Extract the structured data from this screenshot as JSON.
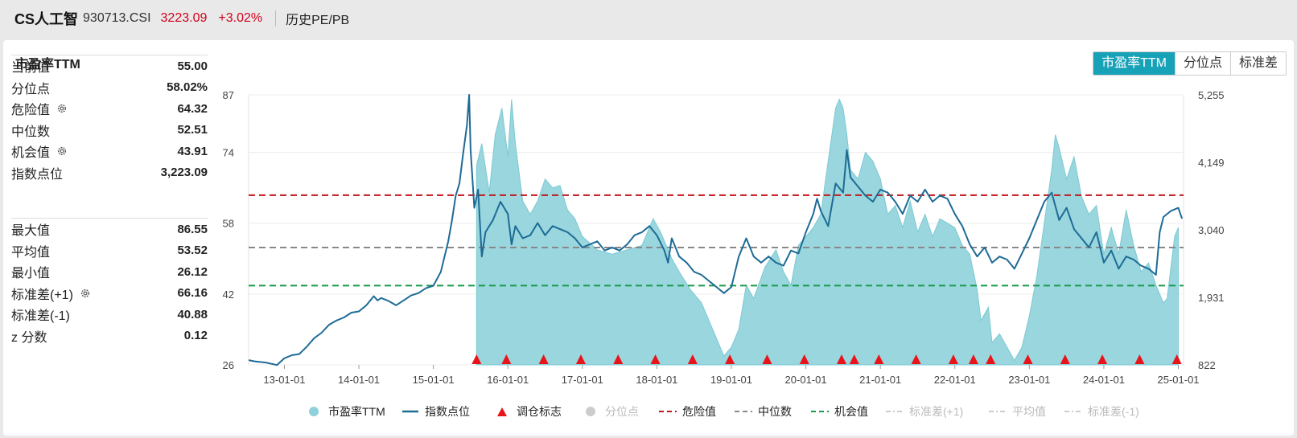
{
  "header": {
    "name": "CS人工智",
    "code": "930713.CSI",
    "price": "3223.09",
    "change_pct": "+3.02%",
    "history_link": "历史PE/PB"
  },
  "panel": {
    "title": "市盈率TTM",
    "tabs": [
      "市盈率TTM",
      "分位点",
      "标准差"
    ],
    "active_tab": 0
  },
  "stats": {
    "group1": [
      {
        "label": "当前值",
        "value": "55.00",
        "gear": false
      },
      {
        "label": "分位点",
        "value": "58.02%",
        "gear": false
      },
      {
        "label": "危险值",
        "value": "64.32",
        "gear": true
      },
      {
        "label": "中位数",
        "value": "52.51",
        "gear": false
      },
      {
        "label": "机会值",
        "value": "43.91",
        "gear": true
      },
      {
        "label": "指数点位",
        "value": "3,223.09",
        "gear": false
      }
    ],
    "group2": [
      {
        "label": "最大值",
        "value": "86.55",
        "gear": false
      },
      {
        "label": "平均值",
        "value": "53.52",
        "gear": false
      },
      {
        "label": "最小值",
        "value": "26.12",
        "gear": false
      },
      {
        "label": "标准差(+1)",
        "value": "66.16",
        "gear": true
      },
      {
        "label": "标准差(-1)",
        "value": "40.88",
        "gear": false
      },
      {
        "label": "z 分数",
        "value": "0.12",
        "gear": false
      }
    ]
  },
  "colors": {
    "pe_fill": "#8ed1da",
    "pe_line": "#7cc9d3",
    "index_line": "#1e6b96",
    "danger": "#c0161b",
    "median": "#888888",
    "opportunity": "#1a9b4b",
    "marker": "#e8141a",
    "active_tab": "#17a2b8",
    "up": "#d0021b"
  },
  "legend": [
    {
      "label": "市盈率TTM",
      "kind": "circle",
      "color": "#8ed1da",
      "dim": false
    },
    {
      "label": "指数点位",
      "kind": "line",
      "color": "#1e6b96",
      "dim": false
    },
    {
      "label": "调仓标志",
      "kind": "triangle",
      "color": "#e8141a",
      "dim": false
    },
    {
      "label": "分位点",
      "kind": "circle",
      "color": "#cccccc",
      "dim": true
    },
    {
      "label": "危险值",
      "kind": "dash",
      "color": "#c0161b",
      "dim": false
    },
    {
      "label": "中位数",
      "kind": "dash",
      "color": "#888888",
      "dim": false
    },
    {
      "label": "机会值",
      "kind": "dash",
      "color": "#1a9b4b",
      "dim": false
    },
    {
      "label": "标准差(+1)",
      "kind": "dashdot",
      "color": "#cccccc",
      "dim": true
    },
    {
      "label": "平均值",
      "kind": "dashdot",
      "color": "#cccccc",
      "dim": true
    },
    {
      "label": "标准差(-1)",
      "kind": "dashdot",
      "color": "#cccccc",
      "dim": true
    }
  ],
  "chart_data": {
    "type": "area",
    "x_start": "2012-07",
    "x_end": "2025-01",
    "x_ticks": [
      "13-01-01",
      "14-01-01",
      "15-01-01",
      "16-01-01",
      "17-01-01",
      "18-01-01",
      "19-01-01",
      "20-01-01",
      "21-01-01",
      "22-01-01",
      "23-01-01",
      "24-01-01",
      "25-01-01"
    ],
    "y_left": {
      "range": [
        26,
        87
      ],
      "ticks": [
        "26",
        "42",
        "58",
        "74",
        "87"
      ],
      "tick_values": [
        26,
        42,
        58,
        74,
        87
      ]
    },
    "y_right": {
      "range": [
        822,
        5255
      ],
      "ticks": [
        "822",
        "1,931",
        "3,040",
        "4,149",
        "5,255"
      ],
      "tick_values": [
        822,
        1931,
        3040,
        4149,
        5255
      ]
    },
    "reference_lines": [
      {
        "name": "危险值",
        "value": 64.32
      },
      {
        "name": "中位数",
        "value": 52.51
      },
      {
        "name": "机会值",
        "value": 43.91
      }
    ],
    "series": [
      {
        "name": "市盈率TTM",
        "axis": "left",
        "points": [
          [
            2015.58,
            71
          ],
          [
            2015.65,
            76
          ],
          [
            2015.75,
            65
          ],
          [
            2015.83,
            78
          ],
          [
            2015.92,
            84
          ],
          [
            2016.0,
            73
          ],
          [
            2016.05,
            86
          ],
          [
            2016.1,
            76
          ],
          [
            2016.2,
            63
          ],
          [
            2016.3,
            60
          ],
          [
            2016.4,
            63
          ],
          [
            2016.5,
            68
          ],
          [
            2016.6,
            66
          ],
          [
            2016.7,
            66.5
          ],
          [
            2016.8,
            61
          ],
          [
            2016.9,
            59
          ],
          [
            2017.0,
            55
          ],
          [
            2017.2,
            52
          ],
          [
            2017.4,
            51
          ],
          [
            2017.6,
            52
          ],
          [
            2017.8,
            53
          ],
          [
            2017.95,
            59
          ],
          [
            2018.05,
            56
          ],
          [
            2018.2,
            50
          ],
          [
            2018.3,
            47
          ],
          [
            2018.45,
            43
          ],
          [
            2018.6,
            40
          ],
          [
            2018.75,
            34
          ],
          [
            2018.9,
            28
          ],
          [
            2019.0,
            30
          ],
          [
            2019.1,
            34
          ],
          [
            2019.2,
            44
          ],
          [
            2019.3,
            41
          ],
          [
            2019.45,
            48
          ],
          [
            2019.6,
            52
          ],
          [
            2019.7,
            47
          ],
          [
            2019.8,
            44
          ],
          [
            2019.9,
            53
          ],
          [
            2020.0,
            55
          ],
          [
            2020.1,
            57
          ],
          [
            2020.2,
            60
          ],
          [
            2020.3,
            72
          ],
          [
            2020.4,
            84
          ],
          [
            2020.45,
            86
          ],
          [
            2020.5,
            84
          ],
          [
            2020.55,
            78
          ],
          [
            2020.6,
            70
          ],
          [
            2020.7,
            68
          ],
          [
            2020.8,
            74
          ],
          [
            2020.9,
            72
          ],
          [
            2021.0,
            68
          ],
          [
            2021.1,
            60
          ],
          [
            2021.2,
            62
          ],
          [
            2021.3,
            57
          ],
          [
            2021.4,
            63
          ],
          [
            2021.5,
            56
          ],
          [
            2021.6,
            60
          ],
          [
            2021.7,
            55
          ],
          [
            2021.8,
            59
          ],
          [
            2021.9,
            58
          ],
          [
            2022.0,
            57
          ],
          [
            2022.1,
            53
          ],
          [
            2022.2,
            51
          ],
          [
            2022.3,
            43
          ],
          [
            2022.35,
            36
          ],
          [
            2022.45,
            39
          ],
          [
            2022.5,
            31
          ],
          [
            2022.6,
            33
          ],
          [
            2022.7,
            30
          ],
          [
            2022.8,
            27
          ],
          [
            2022.9,
            30
          ],
          [
            2023.0,
            37
          ],
          [
            2023.1,
            46
          ],
          [
            2023.2,
            58
          ],
          [
            2023.3,
            70
          ],
          [
            2023.35,
            78
          ],
          [
            2023.4,
            75
          ],
          [
            2023.5,
            68
          ],
          [
            2023.6,
            73
          ],
          [
            2023.7,
            64
          ],
          [
            2023.8,
            60
          ],
          [
            2023.9,
            62
          ],
          [
            2024.0,
            51
          ],
          [
            2024.1,
            57
          ],
          [
            2024.2,
            51
          ],
          [
            2024.3,
            61
          ],
          [
            2024.4,
            53
          ],
          [
            2024.5,
            47
          ],
          [
            2024.6,
            49
          ],
          [
            2024.7,
            44
          ],
          [
            2024.8,
            40
          ],
          [
            2024.85,
            41
          ],
          [
            2024.95,
            55
          ],
          [
            2025.0,
            57
          ]
        ]
      },
      {
        "name": "指数点位",
        "axis": "right",
        "points": [
          [
            2012.52,
            900
          ],
          [
            2012.6,
            880
          ],
          [
            2012.75,
            860
          ],
          [
            2012.9,
            820
          ],
          [
            2013.0,
            930
          ],
          [
            2013.1,
            980
          ],
          [
            2013.2,
            1000
          ],
          [
            2013.3,
            1120
          ],
          [
            2013.4,
            1260
          ],
          [
            2013.5,
            1350
          ],
          [
            2013.6,
            1480
          ],
          [
            2013.7,
            1550
          ],
          [
            2013.8,
            1600
          ],
          [
            2013.9,
            1680
          ],
          [
            2014.0,
            1700
          ],
          [
            2014.1,
            1800
          ],
          [
            2014.2,
            1950
          ],
          [
            2014.25,
            1880
          ],
          [
            2014.3,
            1920
          ],
          [
            2014.4,
            1870
          ],
          [
            2014.5,
            1800
          ],
          [
            2014.6,
            1880
          ],
          [
            2014.7,
            1960
          ],
          [
            2014.8,
            2000
          ],
          [
            2014.9,
            2080
          ],
          [
            2015.0,
            2120
          ],
          [
            2015.1,
            2350
          ],
          [
            2015.2,
            2850
          ],
          [
            2015.25,
            3200
          ],
          [
            2015.3,
            3600
          ],
          [
            2015.35,
            3800
          ],
          [
            2015.4,
            4300
          ],
          [
            2015.45,
            4750
          ],
          [
            2015.48,
            5255
          ],
          [
            2015.5,
            4350
          ],
          [
            2015.55,
            3400
          ],
          [
            2015.6,
            3700
          ],
          [
            2015.65,
            2600
          ],
          [
            2015.7,
            3000
          ],
          [
            2015.8,
            3200
          ],
          [
            2015.9,
            3500
          ],
          [
            2016.0,
            3300
          ],
          [
            2016.05,
            2800
          ],
          [
            2016.1,
            3100
          ],
          [
            2016.2,
            2900
          ],
          [
            2016.3,
            2950
          ],
          [
            2016.4,
            3150
          ],
          [
            2016.5,
            2950
          ],
          [
            2016.6,
            3100
          ],
          [
            2016.7,
            3050
          ],
          [
            2016.8,
            3000
          ],
          [
            2016.9,
            2900
          ],
          [
            2017.0,
            2750
          ],
          [
            2017.1,
            2800
          ],
          [
            2017.2,
            2850
          ],
          [
            2017.3,
            2700
          ],
          [
            2017.4,
            2750
          ],
          [
            2017.5,
            2700
          ],
          [
            2017.6,
            2800
          ],
          [
            2017.7,
            2950
          ],
          [
            2017.8,
            3000
          ],
          [
            2017.9,
            3100
          ],
          [
            2018.0,
            2950
          ],
          [
            2018.1,
            2700
          ],
          [
            2018.15,
            2500
          ],
          [
            2018.2,
            2900
          ],
          [
            2018.3,
            2600
          ],
          [
            2018.4,
            2500
          ],
          [
            2018.5,
            2350
          ],
          [
            2018.6,
            2300
          ],
          [
            2018.7,
            2200
          ],
          [
            2018.8,
            2100
          ],
          [
            2018.9,
            2000
          ],
          [
            2019.0,
            2100
          ],
          [
            2019.1,
            2600
          ],
          [
            2019.2,
            2900
          ],
          [
            2019.3,
            2600
          ],
          [
            2019.4,
            2500
          ],
          [
            2019.5,
            2600
          ],
          [
            2019.6,
            2500
          ],
          [
            2019.7,
            2450
          ],
          [
            2019.8,
            2700
          ],
          [
            2019.9,
            2650
          ],
          [
            2020.0,
            3000
          ],
          [
            2020.1,
            3300
          ],
          [
            2020.15,
            3550
          ],
          [
            2020.2,
            3350
          ],
          [
            2020.3,
            3100
          ],
          [
            2020.4,
            3800
          ],
          [
            2020.5,
            3650
          ],
          [
            2020.55,
            4350
          ],
          [
            2020.6,
            3900
          ],
          [
            2020.7,
            3750
          ],
          [
            2020.8,
            3600
          ],
          [
            2020.9,
            3500
          ],
          [
            2021.0,
            3700
          ],
          [
            2021.1,
            3650
          ],
          [
            2021.2,
            3500
          ],
          [
            2021.3,
            3300
          ],
          [
            2021.4,
            3600
          ],
          [
            2021.5,
            3500
          ],
          [
            2021.6,
            3700
          ],
          [
            2021.7,
            3500
          ],
          [
            2021.8,
            3600
          ],
          [
            2021.9,
            3550
          ],
          [
            2022.0,
            3300
          ],
          [
            2022.1,
            3100
          ],
          [
            2022.2,
            2800
          ],
          [
            2022.3,
            2600
          ],
          [
            2022.4,
            2750
          ],
          [
            2022.5,
            2500
          ],
          [
            2022.6,
            2600
          ],
          [
            2022.7,
            2550
          ],
          [
            2022.8,
            2400
          ],
          [
            2022.9,
            2650
          ],
          [
            2023.0,
            2900
          ],
          [
            2023.1,
            3200
          ],
          [
            2023.2,
            3500
          ],
          [
            2023.3,
            3650
          ],
          [
            2023.4,
            3200
          ],
          [
            2023.5,
            3400
          ],
          [
            2023.6,
            3050
          ],
          [
            2023.7,
            2900
          ],
          [
            2023.8,
            2750
          ],
          [
            2023.9,
            3000
          ],
          [
            2024.0,
            2500
          ],
          [
            2024.1,
            2700
          ],
          [
            2024.2,
            2400
          ],
          [
            2024.3,
            2600
          ],
          [
            2024.4,
            2550
          ],
          [
            2024.5,
            2450
          ],
          [
            2024.6,
            2400
          ],
          [
            2024.7,
            2300
          ],
          [
            2024.75,
            3000
          ],
          [
            2024.8,
            3250
          ],
          [
            2024.9,
            3350
          ],
          [
            2025.0,
            3400
          ],
          [
            2025.05,
            3223
          ]
        ]
      }
    ],
    "rebalance_markers": [
      2015.58,
      2015.98,
      2016.48,
      2016.98,
      2017.48,
      2017.98,
      2018.48,
      2018.98,
      2019.48,
      2019.98,
      2020.48,
      2020.65,
      2020.98,
      2021.48,
      2021.98,
      2022.25,
      2022.48,
      2022.98,
      2023.48,
      2023.98,
      2024.48,
      2024.98
    ]
  }
}
